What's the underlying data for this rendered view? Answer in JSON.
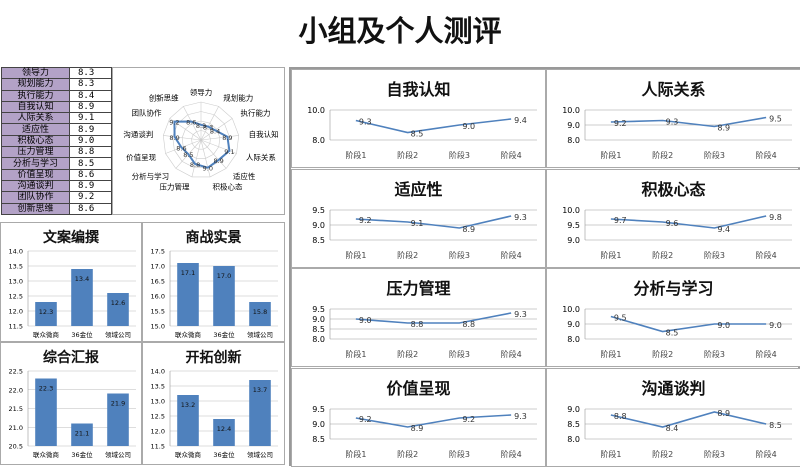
{
  "title": "小组及个人测评",
  "scores": [
    [
      "领导力",
      "8.3"
    ],
    [
      "规划能力",
      "8.3"
    ],
    [
      "执行能力",
      "8.4"
    ],
    [
      "自我认知",
      "8.9"
    ],
    [
      "人际关系",
      "9.1"
    ],
    [
      "适应性",
      "8.9"
    ],
    [
      "积极心态",
      "9.0"
    ],
    [
      "压力管理",
      "8.8"
    ],
    [
      "分析与学习",
      "8.5"
    ],
    [
      "价值呈现",
      "8.6"
    ],
    [
      "沟通谈判",
      "8.9"
    ],
    [
      "团队协作",
      "9.2"
    ],
    [
      "创新思维",
      "8.6"
    ]
  ],
  "colors": {
    "series": "#4f81bd",
    "bar": "#4f81bd",
    "label_bg": "#b3a2c7"
  },
  "chart_data": [
    {
      "type": "radar",
      "categories": [
        "领导力",
        "规划能力",
        "执行能力",
        "自我认知",
        "人际关系",
        "适应性",
        "积极心态",
        "压力管理",
        "分析与学习",
        "价值呈现",
        "沟通谈判",
        "团队协作",
        "创新思维"
      ],
      "values": [
        8.3,
        8.3,
        8.4,
        8.9,
        9.1,
        8.9,
        9.0,
        8.8,
        8.5,
        8.6,
        8.9,
        9.2,
        8.6
      ],
      "rlim": [
        7.5,
        9.5
      ]
    },
    {
      "type": "bar",
      "title": "文案编撰",
      "categories": [
        "联众微商",
        "36金位",
        "领域公司"
      ],
      "values": [
        12.3,
        13.4,
        12.6
      ],
      "ylim": [
        11.5,
        14.0
      ],
      "ticks": [
        "14.0",
        "13.5",
        "13.0",
        "12.5",
        "12.0",
        "11.5"
      ]
    },
    {
      "type": "bar",
      "title": "商战实景",
      "categories": [
        "联众微商",
        "36金位",
        "领域公司"
      ],
      "values": [
        17.1,
        17.0,
        15.8
      ],
      "ylim": [
        15.0,
        17.5
      ],
      "ticks": [
        "17.5",
        "17.0",
        "16.5",
        "16.0",
        "15.5",
        "15.0"
      ]
    },
    {
      "type": "bar",
      "title": "综合汇报",
      "categories": [
        "联众微商",
        "36金位",
        "领域公司"
      ],
      "values": [
        22.3,
        21.1,
        21.9
      ],
      "ylim": [
        20.5,
        22.5
      ],
      "ticks": [
        "22.5",
        "22.0",
        "21.5",
        "21.0",
        "20.5"
      ]
    },
    {
      "type": "bar",
      "title": "开拓创新",
      "categories": [
        "联众微商",
        "36金位",
        "领域公司"
      ],
      "values": [
        13.2,
        12.4,
        13.7
      ],
      "ylim": [
        11.5,
        14.0
      ],
      "ticks": [
        "14.0",
        "13.5",
        "13.0",
        "12.5",
        "12.0",
        "11.5"
      ]
    },
    {
      "type": "line",
      "title": "自我认知",
      "categories": [
        "阶段1",
        "阶段2",
        "阶段3",
        "阶段4"
      ],
      "values": [
        9.3,
        8.5,
        9.0,
        9.4
      ],
      "ylim": [
        8.0,
        10.0
      ],
      "ticks": [
        "10.0",
        "8.0"
      ]
    },
    {
      "type": "line",
      "title": "人际关系",
      "categories": [
        "阶段1",
        "阶段2",
        "阶段3",
        "阶段4"
      ],
      "values": [
        9.2,
        9.3,
        8.9,
        9.5
      ],
      "ylim": [
        8.0,
        10.0
      ],
      "ticks": [
        "10.0",
        "9.0",
        "8.0"
      ]
    },
    {
      "type": "line",
      "title": "适应性",
      "categories": [
        "阶段1",
        "阶段2",
        "阶段3",
        "阶段4"
      ],
      "values": [
        9.2,
        9.1,
        8.9,
        9.3
      ],
      "ylim": [
        8.5,
        9.5
      ],
      "ticks": [
        "9.5",
        "9.0",
        "8.5"
      ]
    },
    {
      "type": "line",
      "title": "积极心态",
      "categories": [
        "阶段1",
        "阶段2",
        "阶段3",
        "阶段4"
      ],
      "values": [
        9.7,
        9.6,
        9.4,
        9.8
      ],
      "ylim": [
        9.0,
        10.0
      ],
      "ticks": [
        "10.0",
        "9.5",
        "9.0"
      ]
    },
    {
      "type": "line",
      "title": "压力管理",
      "categories": [
        "阶段1",
        "阶段2",
        "阶段3",
        "阶段4"
      ],
      "values": [
        9.0,
        8.8,
        8.8,
        9.3
      ],
      "ylim": [
        8.0,
        9.5
      ],
      "ticks": [
        "9.5",
        "9.0",
        "8.5",
        "8.0"
      ]
    },
    {
      "type": "line",
      "title": "分析与学习",
      "categories": [
        "阶段1",
        "阶段2",
        "阶段3",
        "阶段4"
      ],
      "values": [
        9.5,
        8.5,
        9.0,
        9.0
      ],
      "ylim": [
        8.0,
        10.0
      ],
      "ticks": [
        "10.0",
        "9.0",
        "8.0"
      ]
    },
    {
      "type": "line",
      "title": "价值呈现",
      "categories": [
        "阶段1",
        "阶段2",
        "阶段3",
        "阶段4"
      ],
      "values": [
        9.2,
        8.9,
        9.2,
        9.3
      ],
      "ylim": [
        8.5,
        9.5
      ],
      "ticks": [
        "9.5",
        "9.0",
        "8.5"
      ]
    },
    {
      "type": "line",
      "title": "沟通谈判",
      "categories": [
        "阶段1",
        "阶段2",
        "阶段3",
        "阶段4"
      ],
      "values": [
        8.8,
        8.4,
        8.9,
        8.5
      ],
      "ylim": [
        8.0,
        9.0
      ],
      "ticks": [
        "9.0",
        "8.5",
        "8.0"
      ]
    }
  ]
}
